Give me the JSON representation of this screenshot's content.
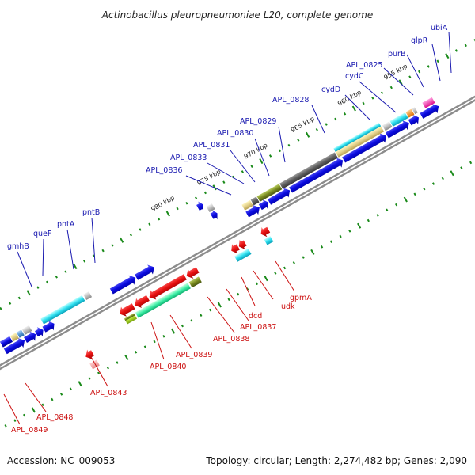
{
  "title": "Actinobacillus pleuropneumoniae L20, complete genome",
  "accession": "Accession: NC_009053",
  "summary": "Topology: circular; Length: 2,274,482 bp; Genes: 2,090",
  "scale_labels": [
    "955 kbp",
    "960 kbp",
    "965 kbp",
    "970 kbp",
    "975 kbp",
    "980 kbp"
  ],
  "top_labels": [
    "gmhB",
    "queF",
    "pntA",
    "pntB",
    "APL_0836",
    "APL_0833",
    "APL_0831",
    "APL_0830",
    "APL_0829",
    "APL_0828",
    "cydD",
    "cydC",
    "APL_0825",
    "purB",
    "glpR",
    "ubiA"
  ],
  "bottom_labels": [
    "APL_0849",
    "APL_0848",
    "APL_0843",
    "APL_0840",
    "APL_0839",
    "APL_0838",
    "APL_0837",
    "dcd",
    "udk",
    "gpmA"
  ],
  "colors": {
    "forward_arrow": "#0a0ae0",
    "reverse_arrow": "#e81010",
    "backbone": "#808080",
    "ticks": "#1a8a1a",
    "label_forward": "#1a1ab0",
    "label_reverse": "#cc1111"
  }
}
